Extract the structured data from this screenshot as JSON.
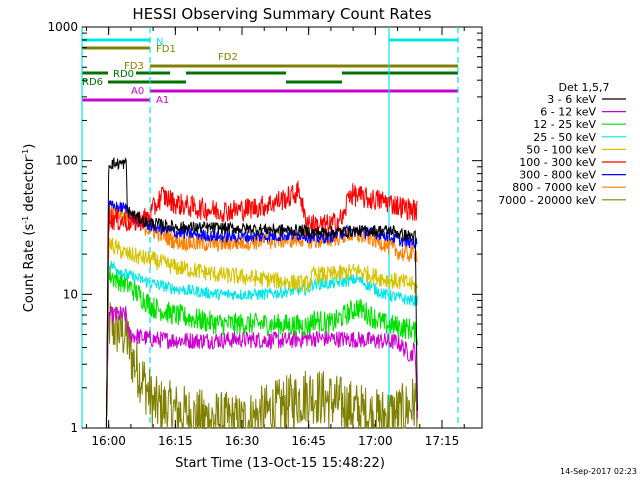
{
  "chart_data": {
    "type": "line",
    "title": "HESSI Observing Summary Count Rates",
    "xlabel": "Start Time (13-Oct-15 15:48:22)",
    "ylabel_main": "Count Rate (s",
    "ylabel_sup1": "-1",
    "ylabel_mid": " detector",
    "ylabel_sup2": "-1",
    "ylabel_end": ")",
    "yscale": "log",
    "ylim": [
      1,
      1000
    ],
    "xlim_minutes": [
      -6,
      84
    ],
    "x_origin_label": "15:48:22",
    "x_ticks": [
      {
        "m": 0,
        "label": "16:00"
      },
      {
        "m": 15,
        "label": "16:15"
      },
      {
        "m": 30,
        "label": "16:30"
      },
      {
        "m": 45,
        "label": "16:45"
      },
      {
        "m": 60,
        "label": "17:00"
      },
      {
        "m": 75,
        "label": "17:15"
      }
    ],
    "y_ticks": [
      {
        "v": 1,
        "label": "1"
      },
      {
        "v": 10,
        "label": "10"
      },
      {
        "v": 100,
        "label": "100"
      },
      {
        "v": 1000,
        "label": "1000"
      }
    ],
    "legend_title": "Det 1,5,7",
    "series": [
      {
        "name": "3 - 6 keV",
        "color": "#000000",
        "points": [
          [
            -0.5,
            0.8
          ],
          [
            0,
            95
          ],
          [
            4,
            95
          ],
          [
            4.2,
            42
          ],
          [
            8,
            35
          ],
          [
            15,
            32
          ],
          [
            30,
            31
          ],
          [
            44,
            30
          ],
          [
            46,
            29
          ],
          [
            60,
            30
          ],
          [
            64,
            30
          ],
          [
            66,
            28
          ],
          [
            69,
            27
          ],
          [
            69.5,
            1
          ]
        ]
      },
      {
        "name": "6 - 12 keV",
        "color": "#cc00cc",
        "points": [
          [
            -0.5,
            1
          ],
          [
            0,
            7
          ],
          [
            4,
            7
          ],
          [
            4.5,
            5
          ],
          [
            10,
            4.6
          ],
          [
            20,
            4.5
          ],
          [
            30,
            4.6
          ],
          [
            40,
            4.5
          ],
          [
            45,
            4.7
          ],
          [
            55,
            4.6
          ],
          [
            60,
            4.5
          ],
          [
            65,
            4.4
          ],
          [
            68,
            3.5
          ],
          [
            69,
            4
          ],
          [
            69.5,
            1
          ]
        ]
      },
      {
        "name": "12 - 25 keV",
        "color": "#00e000",
        "points": [
          [
            -0.5,
            1
          ],
          [
            0,
            14
          ],
          [
            4,
            12
          ],
          [
            10,
            8
          ],
          [
            15,
            7
          ],
          [
            25,
            6
          ],
          [
            35,
            6
          ],
          [
            45,
            5.8
          ],
          [
            46,
            6.5
          ],
          [
            50,
            6
          ],
          [
            56,
            8
          ],
          [
            62,
            6
          ],
          [
            68,
            5.5
          ],
          [
            69.5,
            5
          ]
        ]
      },
      {
        "name": "25 - 50 keV",
        "color": "#00e5e5",
        "points": [
          [
            -0.5,
            1
          ],
          [
            0,
            17
          ],
          [
            4,
            14
          ],
          [
            10,
            12
          ],
          [
            15,
            11
          ],
          [
            25,
            10
          ],
          [
            35,
            10
          ],
          [
            45,
            11
          ],
          [
            46,
            12
          ],
          [
            50,
            12
          ],
          [
            56,
            13
          ],
          [
            62,
            10
          ],
          [
            68,
            9
          ],
          [
            69.5,
            9
          ]
        ]
      },
      {
        "name": "50 - 100 keV",
        "color": "#d4c400",
        "points": [
          [
            -0.5,
            1
          ],
          [
            0,
            24
          ],
          [
            4,
            20
          ],
          [
            10,
            18
          ],
          [
            15,
            16
          ],
          [
            25,
            14
          ],
          [
            35,
            13
          ],
          [
            44,
            12
          ],
          [
            45,
            12
          ],
          [
            46,
            14
          ],
          [
            50,
            14
          ],
          [
            56,
            15
          ],
          [
            62,
            13
          ],
          [
            68,
            12
          ],
          [
            69.5,
            11
          ]
        ]
      },
      {
        "name": "100 - 300 keV",
        "color": "#ff0000",
        "points": [
          [
            -0.5,
            1
          ],
          [
            0,
            37
          ],
          [
            4,
            35
          ],
          [
            6,
            35
          ],
          [
            9,
            38
          ],
          [
            12,
            55
          ],
          [
            15,
            48
          ],
          [
            20,
            44
          ],
          [
            25,
            42
          ],
          [
            30,
            43
          ],
          [
            35,
            46
          ],
          [
            41,
            54
          ],
          [
            43,
            60
          ],
          [
            44,
            38
          ],
          [
            46,
            33
          ],
          [
            50,
            33
          ],
          [
            53,
            38
          ],
          [
            54,
            57
          ],
          [
            58,
            52
          ],
          [
            62,
            50
          ],
          [
            66,
            45
          ],
          [
            69.5,
            42
          ]
        ]
      },
      {
        "name": "300 - 800 keV",
        "color": "#0000ff",
        "points": [
          [
            -0.5,
            1
          ],
          [
            0,
            46
          ],
          [
            4,
            44
          ],
          [
            6,
            36
          ],
          [
            10,
            32
          ],
          [
            15,
            29
          ],
          [
            25,
            27
          ],
          [
            35,
            27
          ],
          [
            44,
            28
          ],
          [
            46,
            26
          ],
          [
            50,
            27
          ],
          [
            54,
            30
          ],
          [
            58,
            29
          ],
          [
            62,
            28
          ],
          [
            66,
            25
          ],
          [
            69.5,
            24
          ]
        ]
      },
      {
        "name": "800 - 7000 keV",
        "color": "#ff8000",
        "points": [
          [
            -0.5,
            1
          ],
          [
            0,
            42
          ],
          [
            4,
            40
          ],
          [
            6,
            34
          ],
          [
            10,
            30
          ],
          [
            15,
            25
          ],
          [
            20,
            24
          ],
          [
            25,
            24
          ],
          [
            35,
            25
          ],
          [
            44,
            26
          ],
          [
            46,
            25
          ],
          [
            50,
            26
          ],
          [
            54,
            28
          ],
          [
            58,
            27
          ],
          [
            62,
            24
          ],
          [
            66,
            20
          ],
          [
            69.5,
            20
          ]
        ]
      },
      {
        "name": "7000 - 20000 keV",
        "color": "#808000",
        "points": [
          [
            -0.5,
            1
          ],
          [
            0,
            6
          ],
          [
            4,
            5
          ],
          [
            5,
            3.5
          ],
          [
            8,
            2.2
          ],
          [
            10,
            1.5
          ],
          [
            20,
            1.2
          ],
          [
            30,
            1.1
          ],
          [
            40,
            1.5
          ],
          [
            45,
            1.8
          ],
          [
            50,
            1.6
          ],
          [
            60,
            1.2
          ],
          [
            66,
            1.3
          ],
          [
            69.5,
            1.6
          ]
        ]
      }
    ],
    "annotations": {
      "N": {
        "label": "N",
        "color": "#00e5e5"
      },
      "FD1": {
        "label": "FD1",
        "color": "#808000"
      },
      "FD2": {
        "label": "FD2",
        "color": "#808000"
      },
      "FD3": {
        "label": "FD3",
        "color": "#808000"
      },
      "RD0": {
        "label": "RD0",
        "color": "#007000"
      },
      "RD6": {
        "label": "RD6",
        "color": "#007000"
      },
      "A0": {
        "label": "A0",
        "color": "#cc00cc"
      },
      "A1": {
        "label": "A1",
        "color": "#cc00cc"
      }
    },
    "timestamp": "14-Sep-2017 02:23"
  }
}
